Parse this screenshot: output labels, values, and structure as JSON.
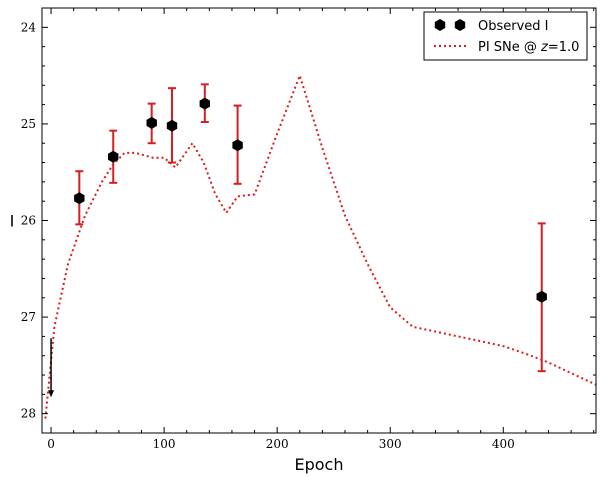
{
  "chart_data": {
    "type": "scatter",
    "xlabel": "Epoch",
    "ylabel": "I",
    "xlim": [
      -8,
      482
    ],
    "ylim": [
      28.2,
      23.8
    ],
    "y_inverted": true,
    "xticks": [
      0,
      100,
      200,
      300,
      400
    ],
    "yticks": [
      24,
      25,
      26,
      27,
      28
    ],
    "legend_position": "top-right",
    "colors": {
      "observed": "#000000",
      "errorbar": "#d81e1e",
      "model": "#e01a1a",
      "upper_limit": "#000000"
    },
    "series": [
      {
        "name": "Observed I",
        "kind": "points",
        "points": [
          {
            "x": 25,
            "y": 25.77,
            "err_low": 0.28,
            "err_high": 0.27
          },
          {
            "x": 55,
            "y": 25.34,
            "err_low": 0.27,
            "err_high": 0.27
          },
          {
            "x": 89,
            "y": 24.99,
            "err_low": 0.2,
            "err_high": 0.21
          },
          {
            "x": 107,
            "y": 25.02,
            "err_low": 0.39,
            "err_high": 0.38
          },
          {
            "x": 136,
            "y": 24.79,
            "err_low": 0.2,
            "err_high": 0.19
          },
          {
            "x": 165,
            "y": 25.22,
            "err_low": 0.41,
            "err_high": 0.4
          },
          {
            "x": 434,
            "y": 26.79,
            "err_low": 0.76,
            "err_high": 0.77
          }
        ]
      },
      {
        "name": "PI SNe @ z=1.0",
        "legend_parts": [
          "PI SNe @ ",
          "z",
          "=1.0"
        ],
        "kind": "line",
        "x": [
          -5,
          3,
          15,
          30,
          45,
          55,
          65,
          75,
          90,
          100,
          110,
          125,
          135,
          145,
          155,
          165,
          180,
          200,
          220,
          240,
          260,
          280,
          300,
          320,
          340,
          360,
          380,
          400,
          420,
          440,
          460,
          482
        ],
        "y": [
          28.05,
          27.1,
          26.45,
          25.95,
          25.6,
          25.42,
          25.3,
          25.3,
          25.35,
          25.35,
          25.45,
          25.2,
          25.4,
          25.72,
          25.92,
          25.75,
          25.73,
          25.1,
          24.5,
          25.25,
          25.95,
          26.45,
          26.9,
          27.1,
          27.15,
          27.2,
          27.25,
          27.3,
          27.38,
          27.47,
          27.58,
          27.7
        ]
      }
    ],
    "upper_limit": {
      "x": 0,
      "y_top": 27.22,
      "y_bottom": 27.83
    }
  }
}
